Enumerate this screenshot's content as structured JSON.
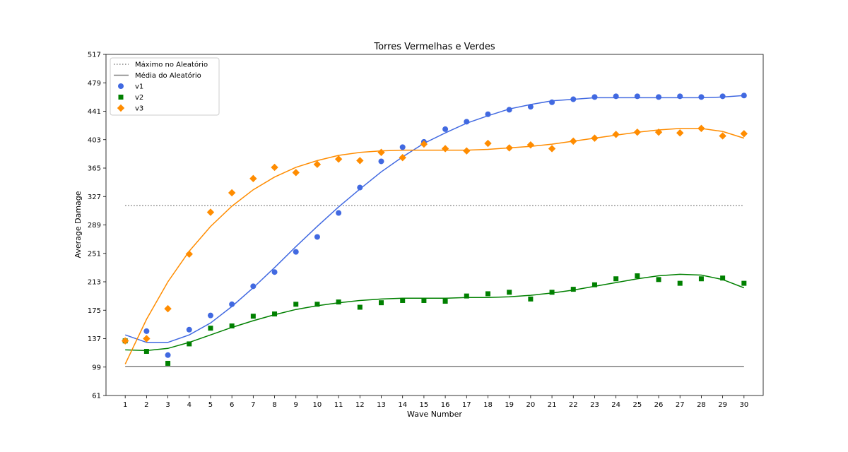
{
  "chart_data": {
    "type": "scatter",
    "title": "Torres Vermelhas e Verdes",
    "xlabel": "Wave Number",
    "ylabel": "Average Damage",
    "xlim": [
      0.1,
      30.9
    ],
    "ylim": [
      61,
      517
    ],
    "x_ticks": [
      1,
      2,
      3,
      4,
      5,
      6,
      7,
      8,
      9,
      10,
      11,
      12,
      13,
      14,
      15,
      16,
      17,
      18,
      19,
      20,
      21,
      22,
      23,
      24,
      25,
      26,
      27,
      28,
      29,
      30
    ],
    "y_ticks": [
      61,
      99,
      137,
      175,
      213,
      251,
      289,
      327,
      365,
      403,
      441,
      479,
      517
    ],
    "grid": false,
    "legend_position": "top-left",
    "reference_lines": [
      {
        "name": "Máximo no Aleatório",
        "y": 315,
        "style": "dotted",
        "color": "#808080"
      },
      {
        "name": "Média do Aleatório",
        "y": 100,
        "style": "solid",
        "color": "#808080"
      }
    ],
    "series": [
      {
        "name": "v1",
        "color": "#4169e1",
        "marker": "circle",
        "x": [
          1,
          2,
          3,
          4,
          5,
          6,
          7,
          8,
          9,
          10,
          11,
          12,
          13,
          14,
          15,
          16,
          17,
          18,
          19,
          20,
          21,
          22,
          23,
          24,
          25,
          26,
          27,
          28,
          29,
          30
        ],
        "values": [
          134,
          147,
          115,
          149,
          168,
          183,
          207,
          226,
          253,
          273,
          305,
          339,
          374,
          393,
          400,
          417,
          427,
          437,
          443,
          447,
          453,
          457,
          460,
          461,
          461,
          460,
          461,
          460,
          461,
          462
        ],
        "fit": [
          142,
          132,
          132,
          142,
          158,
          180,
          205,
          232,
          260,
          287,
          313,
          337,
          360,
          380,
          398,
          412,
          425,
          435,
          444,
          450,
          455,
          457,
          459,
          459,
          459,
          459,
          459,
          459,
          460,
          462
        ]
      },
      {
        "name": "v2",
        "color": "#008000",
        "marker": "square",
        "x": [
          1,
          2,
          3,
          4,
          5,
          6,
          7,
          8,
          9,
          10,
          11,
          12,
          13,
          14,
          15,
          16,
          17,
          18,
          19,
          20,
          21,
          22,
          23,
          24,
          25,
          26,
          27,
          28,
          29,
          30
        ],
        "values": [
          134,
          120,
          104,
          130,
          151,
          154,
          167,
          170,
          183,
          183,
          186,
          179,
          185,
          188,
          188,
          187,
          194,
          197,
          199,
          190,
          199,
          203,
          209,
          217,
          221,
          216,
          211,
          217,
          218,
          211
        ],
        "fit": [
          122,
          121,
          124,
          132,
          142,
          152,
          161,
          169,
          176,
          181,
          185,
          188,
          190,
          191,
          191,
          191,
          192,
          192,
          193,
          195,
          198,
          202,
          207,
          212,
          217,
          221,
          223,
          222,
          216,
          205
        ]
      },
      {
        "name": "v3",
        "color": "#ff8c00",
        "marker": "diamond",
        "x": [
          1,
          2,
          3,
          4,
          5,
          6,
          7,
          8,
          9,
          10,
          11,
          12,
          13,
          14,
          15,
          16,
          17,
          18,
          19,
          20,
          21,
          22,
          23,
          24,
          25,
          26,
          27,
          28,
          29,
          30
        ],
        "values": [
          134,
          137,
          177,
          250,
          306,
          332,
          351,
          366,
          359,
          370,
          377,
          375,
          386,
          379,
          397,
          391,
          388,
          398,
          392,
          396,
          391,
          401,
          405,
          410,
          413,
          413,
          412,
          418,
          408,
          411
        ],
        "fit": [
          103,
          163,
          213,
          254,
          287,
          314,
          336,
          353,
          366,
          375,
          382,
          386,
          388,
          389,
          389,
          389,
          389,
          390,
          392,
          394,
          397,
          401,
          405,
          409,
          413,
          416,
          418,
          418,
          414,
          405
        ]
      }
    ]
  }
}
